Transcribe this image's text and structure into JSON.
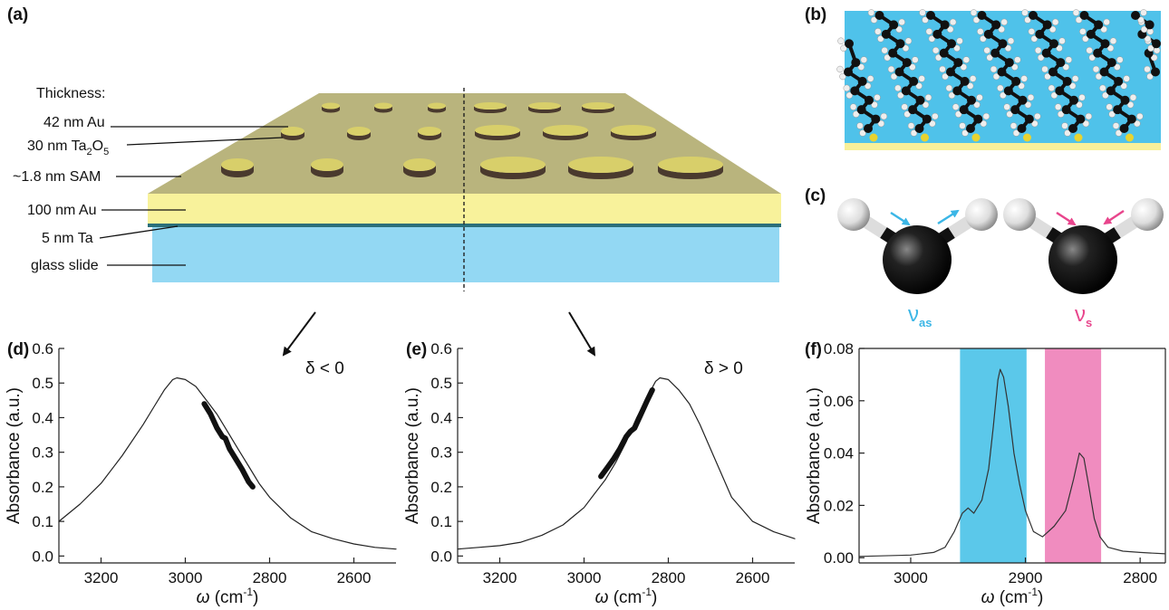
{
  "panel_labels": [
    "(a)",
    "(b)",
    "(c)",
    "(d)",
    "(e)",
    "(f)"
  ],
  "diagram_a": {
    "heading": "Thickness:",
    "layers": [
      "42 nm Au",
      {
        "main": "30 nm Ta",
        "sub1": "2",
        "mid": "O",
        "sub2": "5"
      },
      "~1.8 nm SAM",
      "100 nm Au",
      "5 nm Ta",
      "glass slide"
    ]
  },
  "modes": [
    {
      "symbol": "ν",
      "subscript": "as",
      "color": "#3bb6e6"
    },
    {
      "symbol": "ν",
      "subscript": "s",
      "color": "#e8458c"
    }
  ],
  "chart_data": [
    {
      "type": "line",
      "annotation": "δ < 0",
      "x_label": {
        "main": "ω",
        "rest": " (cm",
        "sup": "-1",
        "close": ")"
      },
      "y_label": "Absorbance (a.u.)",
      "xlim": [
        3300,
        2500
      ],
      "ylim": [
        -0.02,
        0.6
      ],
      "xticks": [
        3200,
        3000,
        2800,
        2600
      ],
      "yticks": [
        {
          "value": 0,
          "label": "0.0"
        },
        0.1,
        0.2,
        0.3,
        0.4,
        0.5,
        0.6
      ],
      "frame": "open",
      "series": [
        {
          "color": "#222222",
          "width": 1.2,
          "x": [
            3300,
            3250,
            3200,
            3150,
            3100,
            3075,
            3050,
            3030,
            3020,
            3000,
            2975,
            2950,
            2925,
            2900,
            2875,
            2850,
            2825,
            2800,
            2750,
            2700,
            2650,
            2600,
            2550,
            2500
          ],
          "values": [
            0.1,
            0.15,
            0.21,
            0.29,
            0.38,
            0.43,
            0.48,
            0.51,
            0.515,
            0.51,
            0.49,
            0.45,
            0.41,
            0.36,
            0.31,
            0.26,
            0.21,
            0.17,
            0.11,
            0.07,
            0.05,
            0.035,
            0.025,
            0.02
          ]
        },
        {
          "color": "#111111",
          "width": 6,
          "x": [
            2955,
            2940,
            2925,
            2912,
            2905,
            2895,
            2880,
            2865,
            2850,
            2840
          ],
          "values": [
            0.44,
            0.41,
            0.37,
            0.345,
            0.34,
            0.31,
            0.28,
            0.25,
            0.215,
            0.2
          ]
        }
      ]
    },
    {
      "type": "line",
      "annotation": "δ > 0",
      "x_label": {
        "main": "ω",
        "rest": " (cm",
        "sup": "-1",
        "close": ")"
      },
      "y_label": "Absorbance (a.u.)",
      "xlim": [
        3300,
        2500
      ],
      "ylim": [
        -0.02,
        0.6
      ],
      "xticks": [
        3200,
        3000,
        2800,
        2600
      ],
      "yticks": [
        {
          "value": 0,
          "label": "0.0"
        },
        0.1,
        0.2,
        0.3,
        0.4,
        0.5,
        0.6
      ],
      "frame": "open",
      "series": [
        {
          "color": "#222222",
          "width": 1.2,
          "x": [
            3300,
            3250,
            3200,
            3150,
            3100,
            3050,
            3000,
            2975,
            2950,
            2925,
            2900,
            2875,
            2850,
            2830,
            2820,
            2800,
            2775,
            2750,
            2725,
            2700,
            2650,
            2600,
            2550,
            2500
          ],
          "values": [
            0.02,
            0.025,
            0.03,
            0.04,
            0.06,
            0.09,
            0.14,
            0.18,
            0.22,
            0.27,
            0.33,
            0.4,
            0.46,
            0.505,
            0.515,
            0.51,
            0.48,
            0.44,
            0.38,
            0.31,
            0.17,
            0.1,
            0.07,
            0.05
          ]
        },
        {
          "color": "#111111",
          "width": 6,
          "x": [
            2960,
            2945,
            2930,
            2915,
            2900,
            2890,
            2880,
            2865,
            2850,
            2838
          ],
          "values": [
            0.23,
            0.255,
            0.28,
            0.31,
            0.345,
            0.36,
            0.37,
            0.41,
            0.45,
            0.48
          ]
        }
      ]
    },
    {
      "type": "line",
      "x_label": {
        "main": "ω",
        "rest": " (cm",
        "sup": "-1",
        "close": ")"
      },
      "y_label": "Absorbance (a.u.)",
      "xlim": [
        3045,
        2778
      ],
      "ylim": [
        -0.002,
        0.08
      ],
      "xticks": [
        3000,
        2900,
        2800
      ],
      "yticks": [
        {
          "value": 0,
          "label": "0.00"
        },
        0.02,
        0.04,
        0.06,
        0.08
      ],
      "frame": "box",
      "bands": [
        {
          "range": [
            2957,
            2899
          ],
          "color": "#5bc8ea"
        },
        {
          "range": [
            2883,
            2834
          ],
          "color": "#f08cbf"
        }
      ],
      "series": [
        {
          "color": "#333333",
          "width": 1.2,
          "x": [
            3045,
            3000,
            2980,
            2970,
            2962,
            2955,
            2950,
            2945,
            2938,
            2932,
            2928,
            2924,
            2922,
            2919,
            2915,
            2910,
            2905,
            2900,
            2893,
            2885,
            2875,
            2865,
            2858,
            2853,
            2849,
            2845,
            2840,
            2835,
            2828,
            2815,
            2800,
            2778
          ],
          "values": [
            0.0005,
            0.001,
            0.002,
            0.004,
            0.01,
            0.017,
            0.019,
            0.017,
            0.022,
            0.034,
            0.05,
            0.068,
            0.072,
            0.069,
            0.058,
            0.04,
            0.028,
            0.018,
            0.01,
            0.008,
            0.012,
            0.018,
            0.03,
            0.04,
            0.038,
            0.028,
            0.015,
            0.008,
            0.004,
            0.0025,
            0.002,
            0.0015
          ]
        }
      ]
    }
  ]
}
